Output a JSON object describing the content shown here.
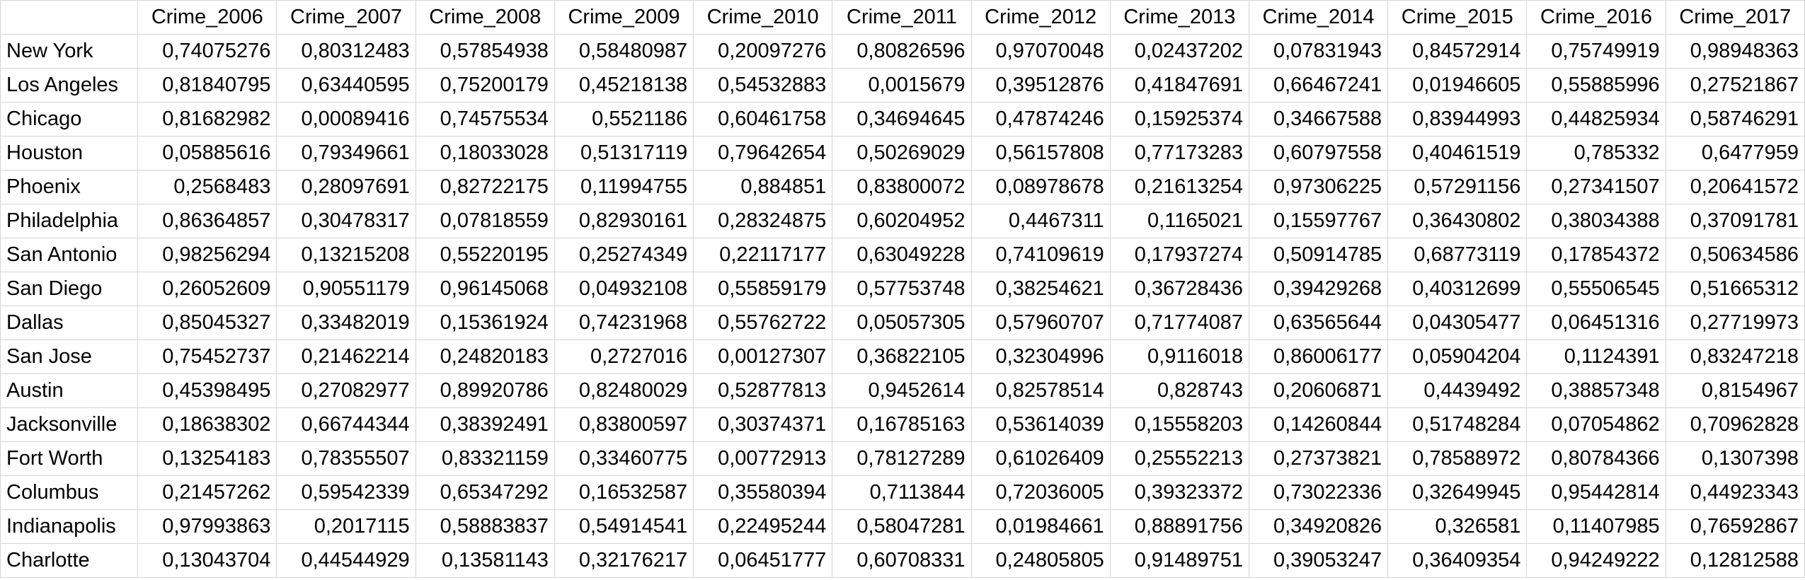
{
  "sheet": {
    "corner": "",
    "columns": [
      "Crime_2006",
      "Crime_2007",
      "Crime_2008",
      "Crime_2009",
      "Crime_2010",
      "Crime_2011",
      "Crime_2012",
      "Crime_2013",
      "Crime_2014",
      "Crime_2015",
      "Crime_2016",
      "Crime_2017"
    ],
    "rows": [
      {
        "label": "New York",
        "values": [
          "0,74075276",
          "0,80312483",
          "0,57854938",
          "0,58480987",
          "0,20097276",
          "0,80826596",
          "0,97070048",
          "0,02437202",
          "0,07831943",
          "0,84572914",
          "0,75749919",
          "0,98948363"
        ]
      },
      {
        "label": "Los Angeles",
        "values": [
          "0,81840795",
          "0,63440595",
          "0,75200179",
          "0,45218138",
          "0,54532883",
          "0,0015679",
          "0,39512876",
          "0,41847691",
          "0,66467241",
          "0,01946605",
          "0,55885996",
          "0,27521867"
        ]
      },
      {
        "label": "Chicago",
        "values": [
          "0,81682982",
          "0,00089416",
          "0,74575534",
          "0,5521186",
          "0,60461758",
          "0,34694645",
          "0,47874246",
          "0,15925374",
          "0,34667588",
          "0,83944993",
          "0,44825934",
          "0,58746291"
        ]
      },
      {
        "label": "Houston",
        "values": [
          "0,05885616",
          "0,79349661",
          "0,18033028",
          "0,51317119",
          "0,79642654",
          "0,50269029",
          "0,56157808",
          "0,77173283",
          "0,60797558",
          "0,40461519",
          "0,785332",
          "0,6477959"
        ]
      },
      {
        "label": "Phoenix",
        "values": [
          "0,2568483",
          "0,28097691",
          "0,82722175",
          "0,11994755",
          "0,884851",
          "0,83800072",
          "0,08978678",
          "0,21613254",
          "0,97306225",
          "0,57291156",
          "0,27341507",
          "0,20641572"
        ]
      },
      {
        "label": "Philadelphia",
        "values": [
          "0,86364857",
          "0,30478317",
          "0,07818559",
          "0,82930161",
          "0,28324875",
          "0,60204952",
          "0,4467311",
          "0,1165021",
          "0,15597767",
          "0,36430802",
          "0,38034388",
          "0,37091781"
        ]
      },
      {
        "label": "San Antonio",
        "values": [
          "0,98256294",
          "0,13215208",
          "0,55220195",
          "0,25274349",
          "0,22117177",
          "0,63049228",
          "0,74109619",
          "0,17937274",
          "0,50914785",
          "0,68773119",
          "0,17854372",
          "0,50634586"
        ]
      },
      {
        "label": "San Diego",
        "values": [
          "0,26052609",
          "0,90551179",
          "0,96145068",
          "0,04932108",
          "0,55859179",
          "0,57753748",
          "0,38254621",
          "0,36728436",
          "0,39429268",
          "0,40312699",
          "0,55506545",
          "0,51665312"
        ]
      },
      {
        "label": "Dallas",
        "values": [
          "0,85045327",
          "0,33482019",
          "0,15361924",
          "0,74231968",
          "0,55762722",
          "0,05057305",
          "0,57960707",
          "0,71774087",
          "0,63565644",
          "0,04305477",
          "0,06451316",
          "0,27719973"
        ]
      },
      {
        "label": "San Jose",
        "values": [
          "0,75452737",
          "0,21462214",
          "0,24820183",
          "0,2727016",
          "0,00127307",
          "0,36822105",
          "0,32304996",
          "0,9116018",
          "0,86006177",
          "0,05904204",
          "0,1124391",
          "0,83247218"
        ]
      },
      {
        "label": "Austin",
        "values": [
          "0,45398495",
          "0,27082977",
          "0,89920786",
          "0,82480029",
          "0,52877813",
          "0,9452614",
          "0,82578514",
          "0,828743",
          "0,20606871",
          "0,4439492",
          "0,38857348",
          "0,8154967"
        ]
      },
      {
        "label": "Jacksonville",
        "values": [
          "0,18638302",
          "0,66744344",
          "0,38392491",
          "0,83800597",
          "0,30374371",
          "0,16785163",
          "0,53614039",
          "0,15558203",
          "0,14260844",
          "0,51748284",
          "0,07054862",
          "0,70962828"
        ]
      },
      {
        "label": "Fort Worth",
        "values": [
          "0,13254183",
          "0,78355507",
          "0,83321159",
          "0,33460775",
          "0,00772913",
          "0,78127289",
          "0,61026409",
          "0,25552213",
          "0,27373821",
          "0,78588972",
          "0,80784366",
          "0,1307398"
        ]
      },
      {
        "label": "Columbus",
        "values": [
          "0,21457262",
          "0,59542339",
          "0,65347292",
          "0,16532587",
          "0,35580394",
          "0,7113844",
          "0,72036005",
          "0,39323372",
          "0,73022336",
          "0,32649945",
          "0,95442814",
          "0,44923343"
        ]
      },
      {
        "label": "Indianapolis",
        "values": [
          "0,97993863",
          "0,2017115",
          "0,58883837",
          "0,54914541",
          "0,22495244",
          "0,58047281",
          "0,01984661",
          "0,88891756",
          "0,34920826",
          "0,326581",
          "0,11407985",
          "0,76592867"
        ]
      },
      {
        "label": "Charlotte",
        "values": [
          "0,13043704",
          "0,44544929",
          "0,13581143",
          "0,32176217",
          "0,06451777",
          "0,60708331",
          "0,24805805",
          "0,91489751",
          "0,39053247",
          "0,36409354",
          "0,94249222",
          "0,12812588"
        ]
      }
    ]
  }
}
